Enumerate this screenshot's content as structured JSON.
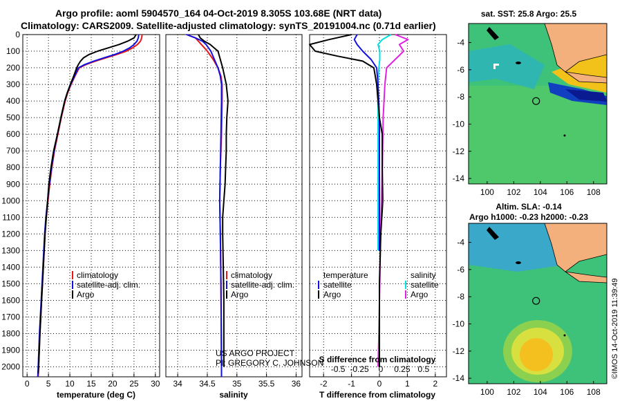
{
  "header": {
    "line1": "Argo profile: aoml 5904570_164 04-Oct-2019 8.305S 103.68E (NRT data)",
    "line2": "Climatology: CARS2009. Satellite-adjusted climatology: synTS_20191004.nc (0.71d earlier)"
  },
  "colors": {
    "climatology": "#e8161a",
    "satellite": "#1010e0",
    "argo": "#000000",
    "sat_s": "#00e0e0",
    "argo_s": "#e020e0"
  },
  "chart_data": [
    {
      "type": "line",
      "title": "",
      "xlabel": "temperature (deg C)",
      "ylabel": "",
      "xlim": [
        -1,
        31
      ],
      "ylim": [
        2060,
        0
      ],
      "x_ticks": [
        "0",
        "5",
        "10",
        "15",
        "20",
        "25",
        "30"
      ],
      "y_ticks": [
        "0",
        "100",
        "200",
        "300",
        "400",
        "500",
        "600",
        "700",
        "800",
        "900",
        "1000",
        "1100",
        "1200",
        "1300",
        "1400",
        "1500",
        "1600",
        "1700",
        "1800",
        "1900",
        "2000"
      ],
      "legend": [
        "climatology",
        "satellite-adj. clim.",
        "Argo"
      ],
      "series": [
        {
          "name": "climatology",
          "depth": [
            0,
            20,
            40,
            60,
            80,
            100,
            120,
            140,
            160,
            180,
            200,
            250,
            300,
            350,
            400,
            500,
            600,
            700,
            800,
            900,
            1000,
            1100,
            1200,
            1400,
            1600,
            1800,
            2000,
            2060
          ],
          "values": [
            26.9,
            26.8,
            26.5,
            25.8,
            24.7,
            23.2,
            21.0,
            18.5,
            16.0,
            13.8,
            12.2,
            11.2,
            10.3,
            9.5,
            8.9,
            8.0,
            7.2,
            6.4,
            5.8,
            5.3,
            4.9,
            4.5,
            4.2,
            3.8,
            3.4,
            3.0,
            2.7,
            2.6
          ]
        },
        {
          "name": "satellite-adj. clim.",
          "depth": [
            0,
            20,
            40,
            60,
            80,
            100,
            120,
            140,
            160,
            180,
            200,
            250,
            300,
            350,
            400,
            500,
            600,
            700,
            800,
            900,
            1000,
            1100,
            1200,
            1400,
            1600,
            1800,
            2000,
            2060
          ],
          "values": [
            26.1,
            26.0,
            25.7,
            25.0,
            24.0,
            22.5,
            20.5,
            18.0,
            15.6,
            13.5,
            12.0,
            11.1,
            10.2,
            9.4,
            8.8,
            7.9,
            7.1,
            6.3,
            5.7,
            5.2,
            4.8,
            4.4,
            4.1,
            3.7,
            3.3,
            2.9,
            2.6,
            2.5
          ]
        },
        {
          "name": "Argo",
          "depth": [
            0,
            20,
            40,
            60,
            80,
            100,
            120,
            140,
            160,
            180,
            200,
            250,
            300,
            350,
            400,
            500,
            600,
            700,
            800,
            900,
            1000,
            1100,
            1200,
            1400,
            1600,
            1800,
            2000,
            2040
          ],
          "values": [
            25.5,
            25.0,
            23.5,
            21.5,
            19.0,
            16.5,
            14.5,
            13.2,
            12.5,
            12.0,
            11.6,
            10.9,
            10.1,
            9.4,
            8.8,
            7.9,
            7.1,
            6.2,
            5.6,
            5.1,
            4.8,
            4.5,
            4.2,
            3.8,
            3.4,
            3.0,
            2.7,
            2.6
          ]
        }
      ]
    },
    {
      "type": "line",
      "title": "",
      "xlabel": "salinity",
      "ylabel": "",
      "xlim": [
        33.8,
        36.1
      ],
      "ylim": [
        2060,
        0
      ],
      "x_ticks": [
        "34",
        "34.5",
        "35",
        "35.5",
        "36"
      ],
      "legend": [
        "climatology",
        "satellite-adj. clim.",
        "Argo"
      ],
      "series": [
        {
          "name": "climatology",
          "depth": [
            0,
            20,
            40,
            60,
            80,
            100,
            150,
            200,
            250,
            300,
            400,
            600,
            800,
            1000,
            1200,
            1500,
            2000,
            2060
          ],
          "values": [
            34.15,
            34.3,
            34.35,
            34.4,
            34.45,
            34.5,
            34.6,
            34.68,
            34.73,
            34.75,
            34.75,
            34.74,
            34.72,
            34.71,
            34.72,
            34.73,
            34.74,
            34.74
          ]
        },
        {
          "name": "satellite-adj. clim.",
          "depth": [
            0,
            20,
            40,
            60,
            80,
            100,
            150,
            200,
            250,
            300,
            400,
            600,
            800,
            1000,
            1200,
            1500,
            2000,
            2060
          ],
          "values": [
            34.15,
            34.3,
            34.42,
            34.48,
            34.52,
            34.56,
            34.62,
            34.68,
            34.72,
            34.74,
            34.74,
            34.73,
            34.72,
            34.71,
            34.72,
            34.73,
            34.74,
            34.74
          ]
        },
        {
          "name": "Argo",
          "depth": [
            0,
            20,
            40,
            60,
            100,
            150,
            200,
            300,
            400,
            500,
            600,
            700,
            800,
            900,
            1000,
            1100,
            1200,
            1400,
            1600,
            1800,
            2000
          ],
          "values": [
            34.35,
            34.38,
            34.45,
            34.55,
            34.68,
            34.72,
            34.76,
            34.82,
            34.85,
            34.83,
            34.82,
            34.82,
            34.81,
            34.8,
            34.78,
            34.76,
            34.76,
            34.77,
            34.78,
            34.78,
            34.78
          ]
        }
      ]
    },
    {
      "type": "line",
      "title": "",
      "xlabel": "T difference from climatology",
      "xlabel2": "S difference from climatology",
      "xlim": [
        -2.5,
        2.4
      ],
      "x_ticks": [
        "-2",
        "-1",
        "0",
        "1",
        "2"
      ],
      "x_ticks_s": [
        "-0.5",
        "-0.25",
        "0",
        "0.25",
        "0.5"
      ],
      "legend_t": {
        "title": "temperature",
        "items": [
          "satellite",
          "Argo"
        ]
      },
      "legend_s": {
        "title": "salinity",
        "items": [
          "satellite",
          "Argo"
        ]
      },
      "series": [
        {
          "name": "T satellite",
          "depth": [
            0,
            30,
            60,
            100,
            150,
            200,
            300,
            500,
            800,
            1000,
            1200,
            1300
          ],
          "values": [
            -0.8,
            -0.9,
            -0.8,
            -0.6,
            -0.3,
            -0.1,
            -0.05,
            0.0,
            0.0,
            0.0,
            0.0,
            0.0
          ]
        },
        {
          "name": "T Argo",
          "depth": [
            0,
            30,
            60,
            100,
            130,
            160,
            200,
            250,
            300,
            400,
            500,
            600,
            800,
            1000,
            1200,
            1500,
            1800,
            2000
          ],
          "values": [
            -1.0,
            -1.8,
            -2.5,
            -2.3,
            -1.5,
            -0.6,
            -0.2,
            -0.15,
            -0.1,
            -0.05,
            0.0,
            0.1,
            0.1,
            0.12,
            0.05,
            0.0,
            0.0,
            0.0
          ]
        },
        {
          "name": "S satellite",
          "depth": [
            0,
            30,
            60,
            100,
            150,
            200,
            300,
            500,
            800,
            1000,
            1200,
            1300
          ],
          "values": [
            0.15,
            0.05,
            0.0,
            0.02,
            0.02,
            0.01,
            0.0,
            0.0,
            0.0,
            0.0,
            0.0,
            0.0
          ]
        },
        {
          "name": "S Argo",
          "depth": [
            0,
            30,
            60,
            100,
            150,
            200,
            300,
            500,
            800,
            1000,
            1200,
            1500,
            1800,
            2000
          ],
          "values": [
            0.2,
            0.35,
            0.25,
            0.3,
            0.2,
            0.1,
            0.08,
            0.06,
            0.05,
            0.04,
            0.03,
            0.02,
            0.01,
            0.0
          ]
        }
      ]
    }
  ],
  "maps": {
    "top_title": "sat. SST: 25.8 Argo: 25.5",
    "bottom_title1": "Altim. SLA: -0.14",
    "bottom_title2": "Argo h1000: -0.23 h2000: -0.23",
    "lon_ticks": [
      "100",
      "102",
      "104",
      "106",
      "108"
    ],
    "lat_ticks_top": [
      "-4",
      "-6",
      "-8",
      "-10",
      "-12",
      "-14"
    ],
    "lat_ticks_bottom": [
      "-4",
      "-6",
      "-8",
      "-10",
      "-12",
      "-14"
    ]
  },
  "credits": {
    "project1": "US ARGO PROJECT",
    "project2": "PI: GREGORY C. JOHNSON",
    "imos": "©IMOS 14-Oct-2019 11:39:49"
  }
}
